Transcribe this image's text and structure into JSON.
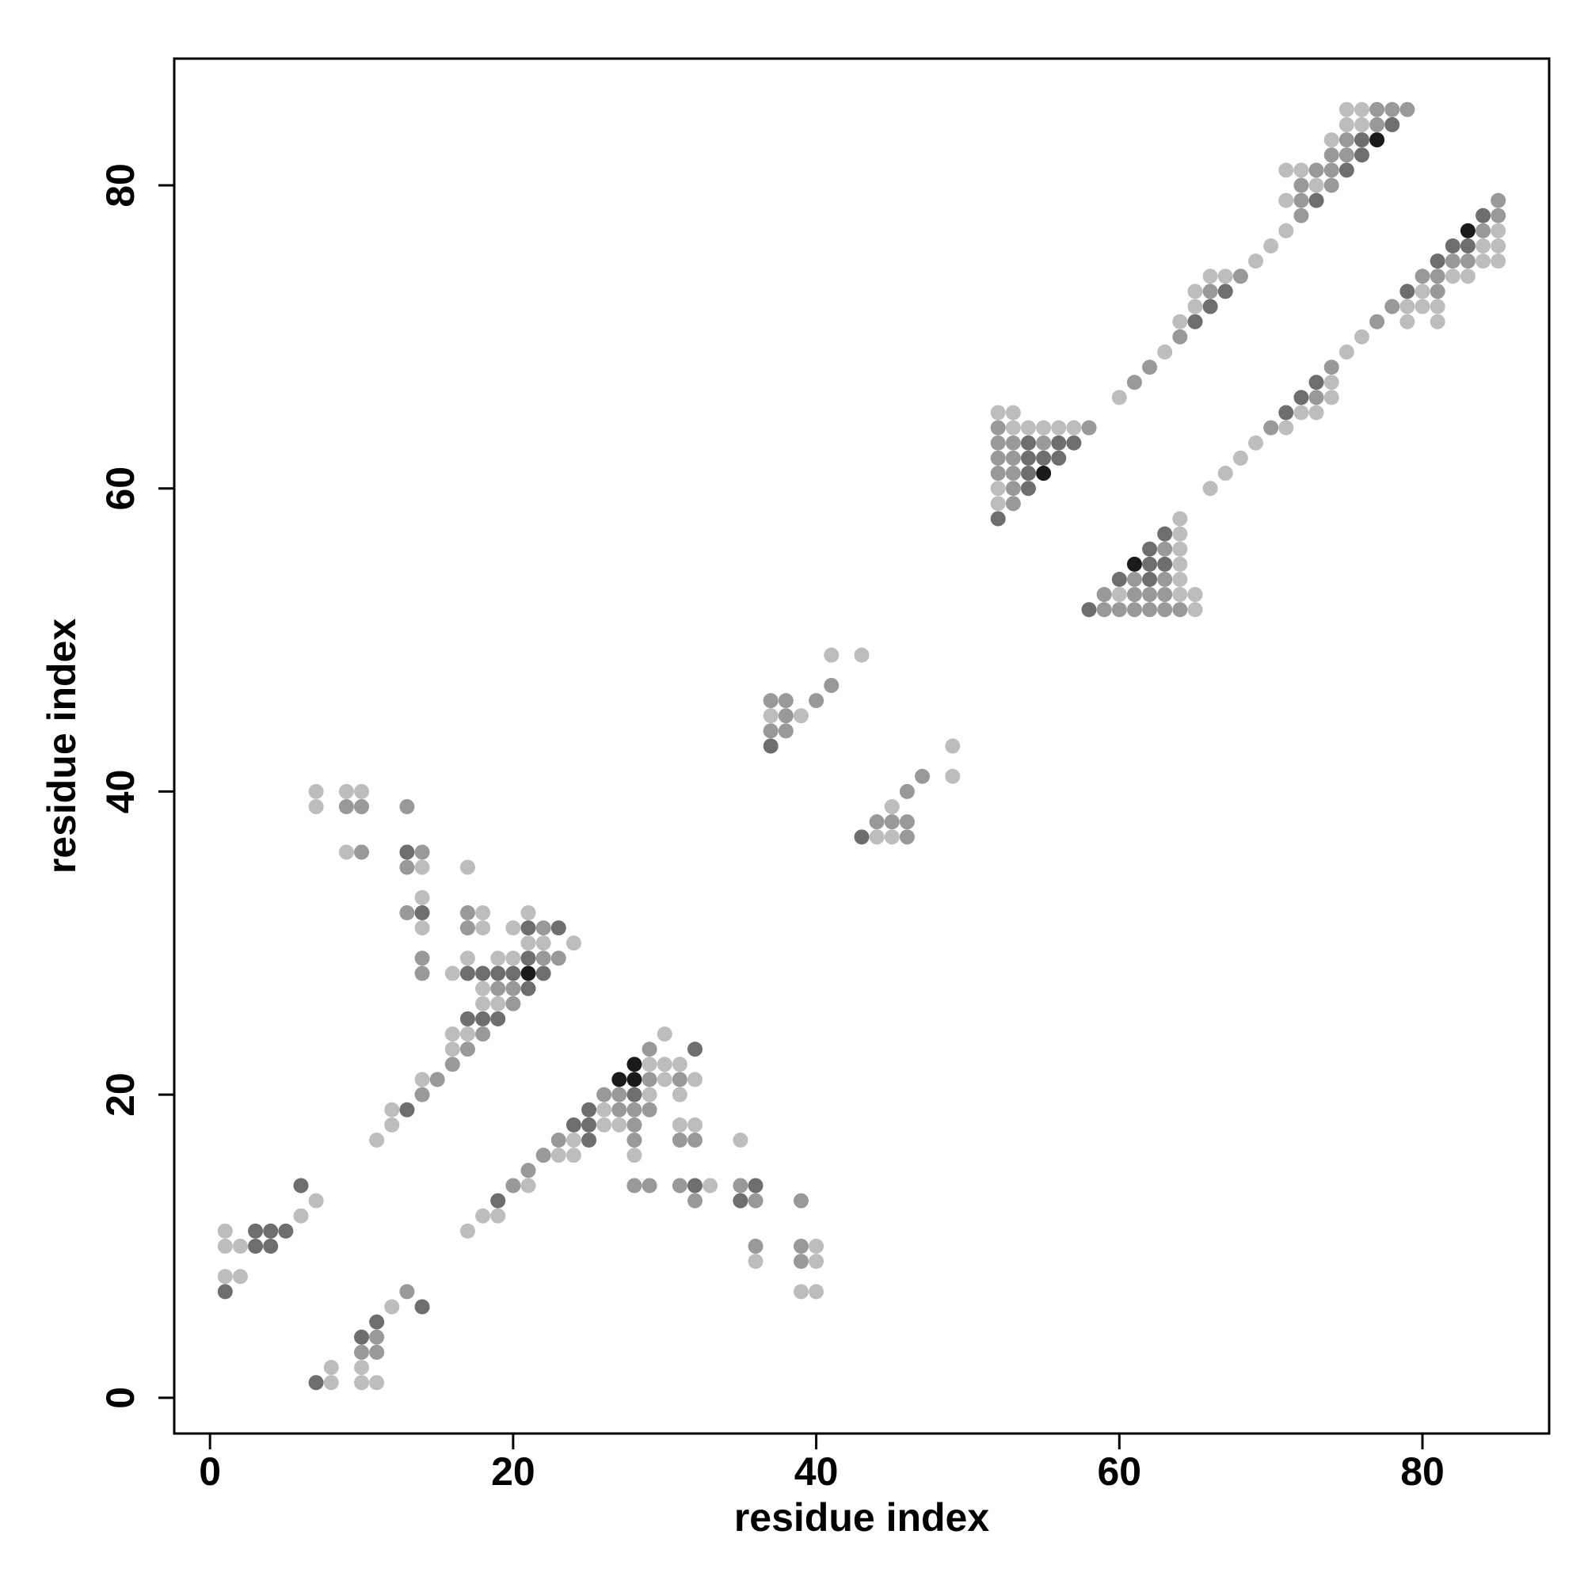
{
  "chart_data": {
    "type": "scatter",
    "xlabel": "residue index",
    "ylabel": "residue index",
    "xlim": [
      -2.36,
      88.36
    ],
    "ylim": [
      -2.36,
      88.36
    ],
    "xticks": [
      0,
      20,
      40,
      60,
      80
    ],
    "yticks": [
      0,
      20,
      40,
      60,
      80
    ],
    "grid": false,
    "series": [
      {
        "color": "#bdbdbd",
        "x": [
          75,
          76,
          75,
          76,
          74,
          71,
          72,
          73,
          71,
          85,
          71,
          70,
          84,
          85,
          69,
          84,
          85,
          66,
          67,
          82,
          83,
          65,
          80,
          65,
          79,
          80,
          81,
          64,
          79,
          81,
          76,
          63,
          75,
          74,
          60,
          74,
          52,
          53,
          72,
          73,
          53,
          54,
          55,
          56,
          57,
          71,
          69,
          68,
          67,
          52,
          66,
          52,
          64,
          64,
          64,
          64,
          64,
          60,
          64,
          65,
          65,
          41,
          43,
          37,
          39,
          49,
          49,
          7,
          9,
          10,
          45,
          7,
          44,
          45,
          9,
          14,
          17,
          14,
          18,
          21,
          14,
          18,
          20,
          21,
          22,
          24,
          17,
          19,
          20,
          16,
          18,
          18,
          19,
          16,
          17,
          30,
          16,
          29,
          30,
          31,
          14,
          30,
          32,
          29,
          31,
          12,
          26,
          12,
          26,
          27,
          31,
          32,
          11,
          24,
          35,
          23,
          24,
          28,
          21,
          33,
          7,
          6,
          18,
          19,
          1,
          17,
          1,
          2,
          40,
          36,
          40,
          1,
          2,
          39,
          40,
          12,
          8,
          10,
          8,
          10,
          11
        ],
        "y": [
          85,
          85,
          84,
          84,
          83,
          81,
          81,
          80,
          79,
          77,
          77,
          76,
          76,
          76,
          75,
          75,
          75,
          74,
          74,
          74,
          74,
          73,
          73,
          72,
          72,
          72,
          72,
          71,
          71,
          71,
          70,
          69,
          69,
          67,
          66,
          66,
          65,
          65,
          65,
          65,
          64,
          64,
          64,
          64,
          64,
          64,
          63,
          62,
          61,
          60,
          60,
          59,
          58,
          57,
          56,
          55,
          54,
          53,
          53,
          53,
          52,
          49,
          49,
          45,
          45,
          43,
          41,
          40,
          40,
          40,
          39,
          39,
          37,
          37,
          36,
          35,
          35,
          33,
          32,
          32,
          31,
          31,
          31,
          30,
          30,
          30,
          29,
          29,
          29,
          28,
          27,
          26,
          26,
          24,
          24,
          24,
          23,
          22,
          22,
          22,
          21,
          21,
          21,
          20,
          20,
          19,
          19,
          18,
          18,
          18,
          18,
          18,
          17,
          17,
          17,
          16,
          16,
          16,
          14,
          14,
          13,
          12,
          12,
          12,
          11,
          11,
          10,
          10,
          10,
          9,
          9,
          8,
          8,
          7,
          7,
          6,
          2,
          2,
          1,
          1,
          1
        ]
      },
      {
        "color": "#999999",
        "x": [
          77,
          78,
          79,
          77,
          75,
          74,
          75,
          73,
          74,
          72,
          74,
          72,
          85,
          72,
          85,
          84,
          82,
          83,
          68,
          80,
          81,
          66,
          81,
          78,
          77,
          64,
          62,
          74,
          61,
          73,
          52,
          58,
          70,
          52,
          53,
          55,
          52,
          53,
          52,
          53,
          53,
          53,
          63,
          61,
          63,
          59,
          61,
          62,
          63,
          59,
          60,
          61,
          62,
          63,
          64,
          41,
          37,
          38,
          40,
          38,
          37,
          38,
          47,
          46,
          9,
          10,
          13,
          44,
          45,
          46,
          46,
          10,
          14,
          13,
          13,
          17,
          17,
          22,
          22,
          23,
          14,
          14,
          19,
          20,
          20,
          18,
          17,
          29,
          16,
          15,
          29,
          31,
          14,
          26,
          27,
          27,
          28,
          29,
          28,
          23,
          28,
          31,
          32,
          22,
          21,
          20,
          28,
          29,
          31,
          35,
          32,
          36,
          39,
          36,
          39,
          39,
          13,
          11,
          10,
          11
        ],
        "y": [
          85,
          85,
          85,
          84,
          83,
          82,
          82,
          81,
          81,
          80,
          80,
          79,
          79,
          78,
          78,
          77,
          75,
          75,
          74,
          74,
          74,
          73,
          73,
          72,
          71,
          70,
          68,
          68,
          67,
          66,
          64,
          64,
          64,
          63,
          63,
          63,
          62,
          62,
          61,
          61,
          60,
          59,
          56,
          54,
          54,
          53,
          53,
          53,
          53,
          52,
          52,
          52,
          52,
          52,
          52,
          47,
          46,
          46,
          46,
          45,
          44,
          44,
          41,
          40,
          39,
          39,
          39,
          38,
          38,
          38,
          37,
          36,
          36,
          35,
          32,
          32,
          31,
          31,
          29,
          29,
          29,
          28,
          27,
          27,
          26,
          24,
          23,
          23,
          22,
          21,
          21,
          21,
          20,
          20,
          20,
          19,
          19,
          19,
          18,
          17,
          17,
          17,
          17,
          16,
          15,
          14,
          14,
          14,
          14,
          14,
          13,
          13,
          13,
          10,
          10,
          9,
          7,
          4,
          3,
          3
        ]
      },
      {
        "color": "#6e6e6e",
        "x": [
          78,
          76,
          76,
          75,
          73,
          84,
          82,
          83,
          81,
          79,
          67,
          66,
          65,
          73,
          72,
          71,
          54,
          56,
          57,
          54,
          55,
          56,
          54,
          54,
          52,
          63,
          62,
          62,
          63,
          60,
          62,
          58,
          37,
          43,
          13,
          14,
          21,
          23,
          21,
          17,
          18,
          19,
          20,
          22,
          21,
          17,
          18,
          19,
          32,
          28,
          13,
          25,
          24,
          25,
          25,
          6,
          32,
          36,
          19,
          35,
          3,
          4,
          5,
          3,
          4,
          1,
          14,
          11,
          10,
          7
        ],
        "y": [
          84,
          83,
          82,
          81,
          79,
          78,
          76,
          76,
          75,
          73,
          73,
          72,
          71,
          67,
          66,
          65,
          63,
          63,
          63,
          62,
          62,
          62,
          61,
          60,
          58,
          57,
          56,
          55,
          55,
          54,
          54,
          52,
          43,
          37,
          36,
          32,
          31,
          31,
          29,
          28,
          28,
          28,
          28,
          28,
          27,
          25,
          25,
          25,
          23,
          20,
          19,
          19,
          18,
          18,
          17,
          14,
          14,
          14,
          13,
          13,
          11,
          11,
          11,
          10,
          10,
          7,
          6,
          5,
          4,
          1
        ]
      },
      {
        "color": "#1a1a1a",
        "x": [
          77,
          83,
          55,
          61,
          21,
          28,
          27,
          28
        ],
        "y": [
          83,
          77,
          61,
          55,
          28,
          22,
          21,
          21
        ]
      }
    ]
  }
}
